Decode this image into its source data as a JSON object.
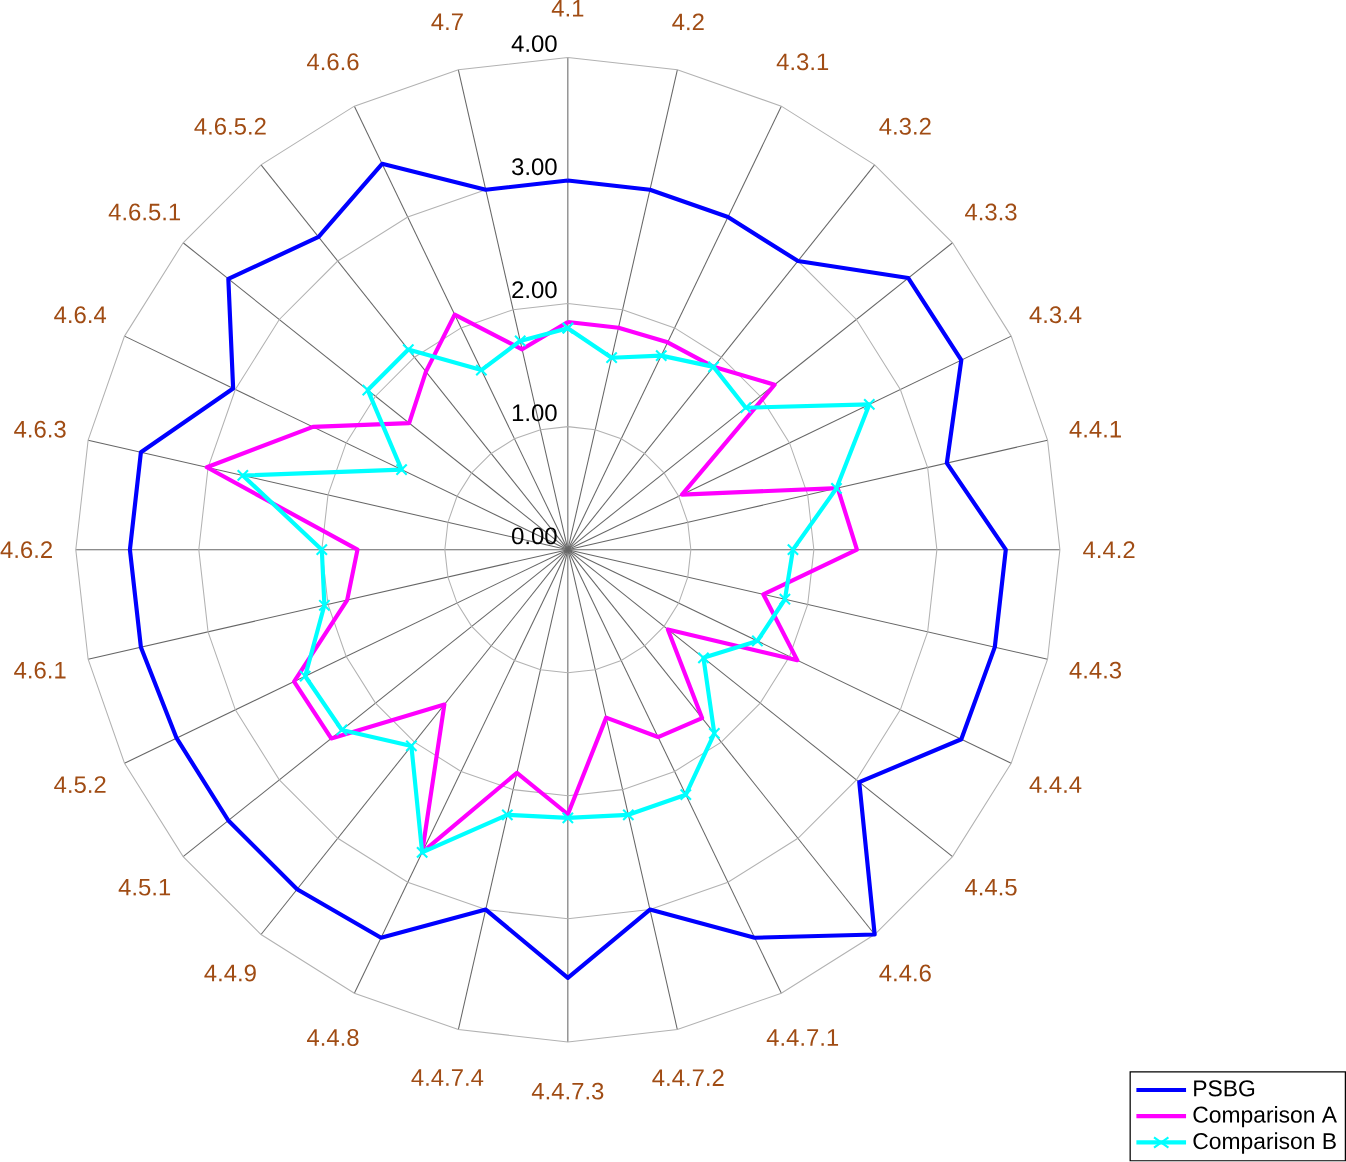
{
  "chart_data": {
    "type": "radar",
    "categories": [
      "4.1",
      "4.2",
      "4.3.1",
      "4.3.2",
      "4.3.3",
      "4.3.4",
      "4.4.1",
      "4.4.2",
      "4.4.3",
      "4.4.4",
      "4.4.5",
      "4.4.6",
      "4.4.7.1",
      "4.4.7.2",
      "4.4.7.3",
      "4.4.7.4",
      "4.4.8",
      "4.4.9",
      "4.5.1",
      "4.5.2",
      "4.6.1",
      "4.6.2",
      "4.6.3",
      "4.6.4",
      "4.6.5.1",
      "4.6.5.2",
      "4.6.6",
      "4.7"
    ],
    "series": [
      {
        "name": "PSBG",
        "color": "#0000ff",
        "marker": "none",
        "values": [
          3.0,
          3.0,
          3.0,
          3.0,
          3.54,
          3.55,
          3.16,
          3.56,
          3.56,
          3.55,
          3.03,
          4.0,
          3.5,
          3.0,
          3.48,
          3.0,
          3.5,
          3.53,
          3.53,
          3.53,
          3.56,
          3.56,
          3.56,
          3.02,
          3.53,
          3.25,
          3.48,
          3.0
        ]
      },
      {
        "name": "Comparison A",
        "color": "#ff00ff",
        "marker": "none",
        "values": [
          1.85,
          1.85,
          1.87,
          1.9,
          2.15,
          1.03,
          2.25,
          2.35,
          1.63,
          2.07,
          1.04,
          1.75,
          1.69,
          1.4,
          2.15,
          1.86,
          2.73,
          1.61,
          2.46,
          2.47,
          1.84,
          1.71,
          3.01,
          2.3,
          1.65,
          1.85,
          2.12,
          1.67
        ]
      },
      {
        "name": "Comparison B",
        "color": "#00ffff",
        "marker": "cross",
        "values": [
          1.8,
          1.6,
          1.75,
          1.9,
          1.85,
          2.72,
          2.24,
          1.83,
          1.81,
          1.71,
          1.41,
          1.91,
          2.21,
          2.21,
          2.18,
          2.21,
          2.73,
          2.04,
          2.35,
          2.37,
          2.03,
          2.0,
          2.71,
          1.5,
          2.08,
          2.08,
          1.62,
          1.74
        ]
      }
    ],
    "ylim": [
      0,
      4
    ],
    "yticks": [
      {
        "value": 0,
        "label": "0.00"
      },
      {
        "value": 1,
        "label": "1.00"
      },
      {
        "value": 2,
        "label": "2.00"
      },
      {
        "value": 3,
        "label": "3.00"
      },
      {
        "value": 4,
        "label": "4.00"
      }
    ],
    "grid": true,
    "legend": "bottom right"
  }
}
